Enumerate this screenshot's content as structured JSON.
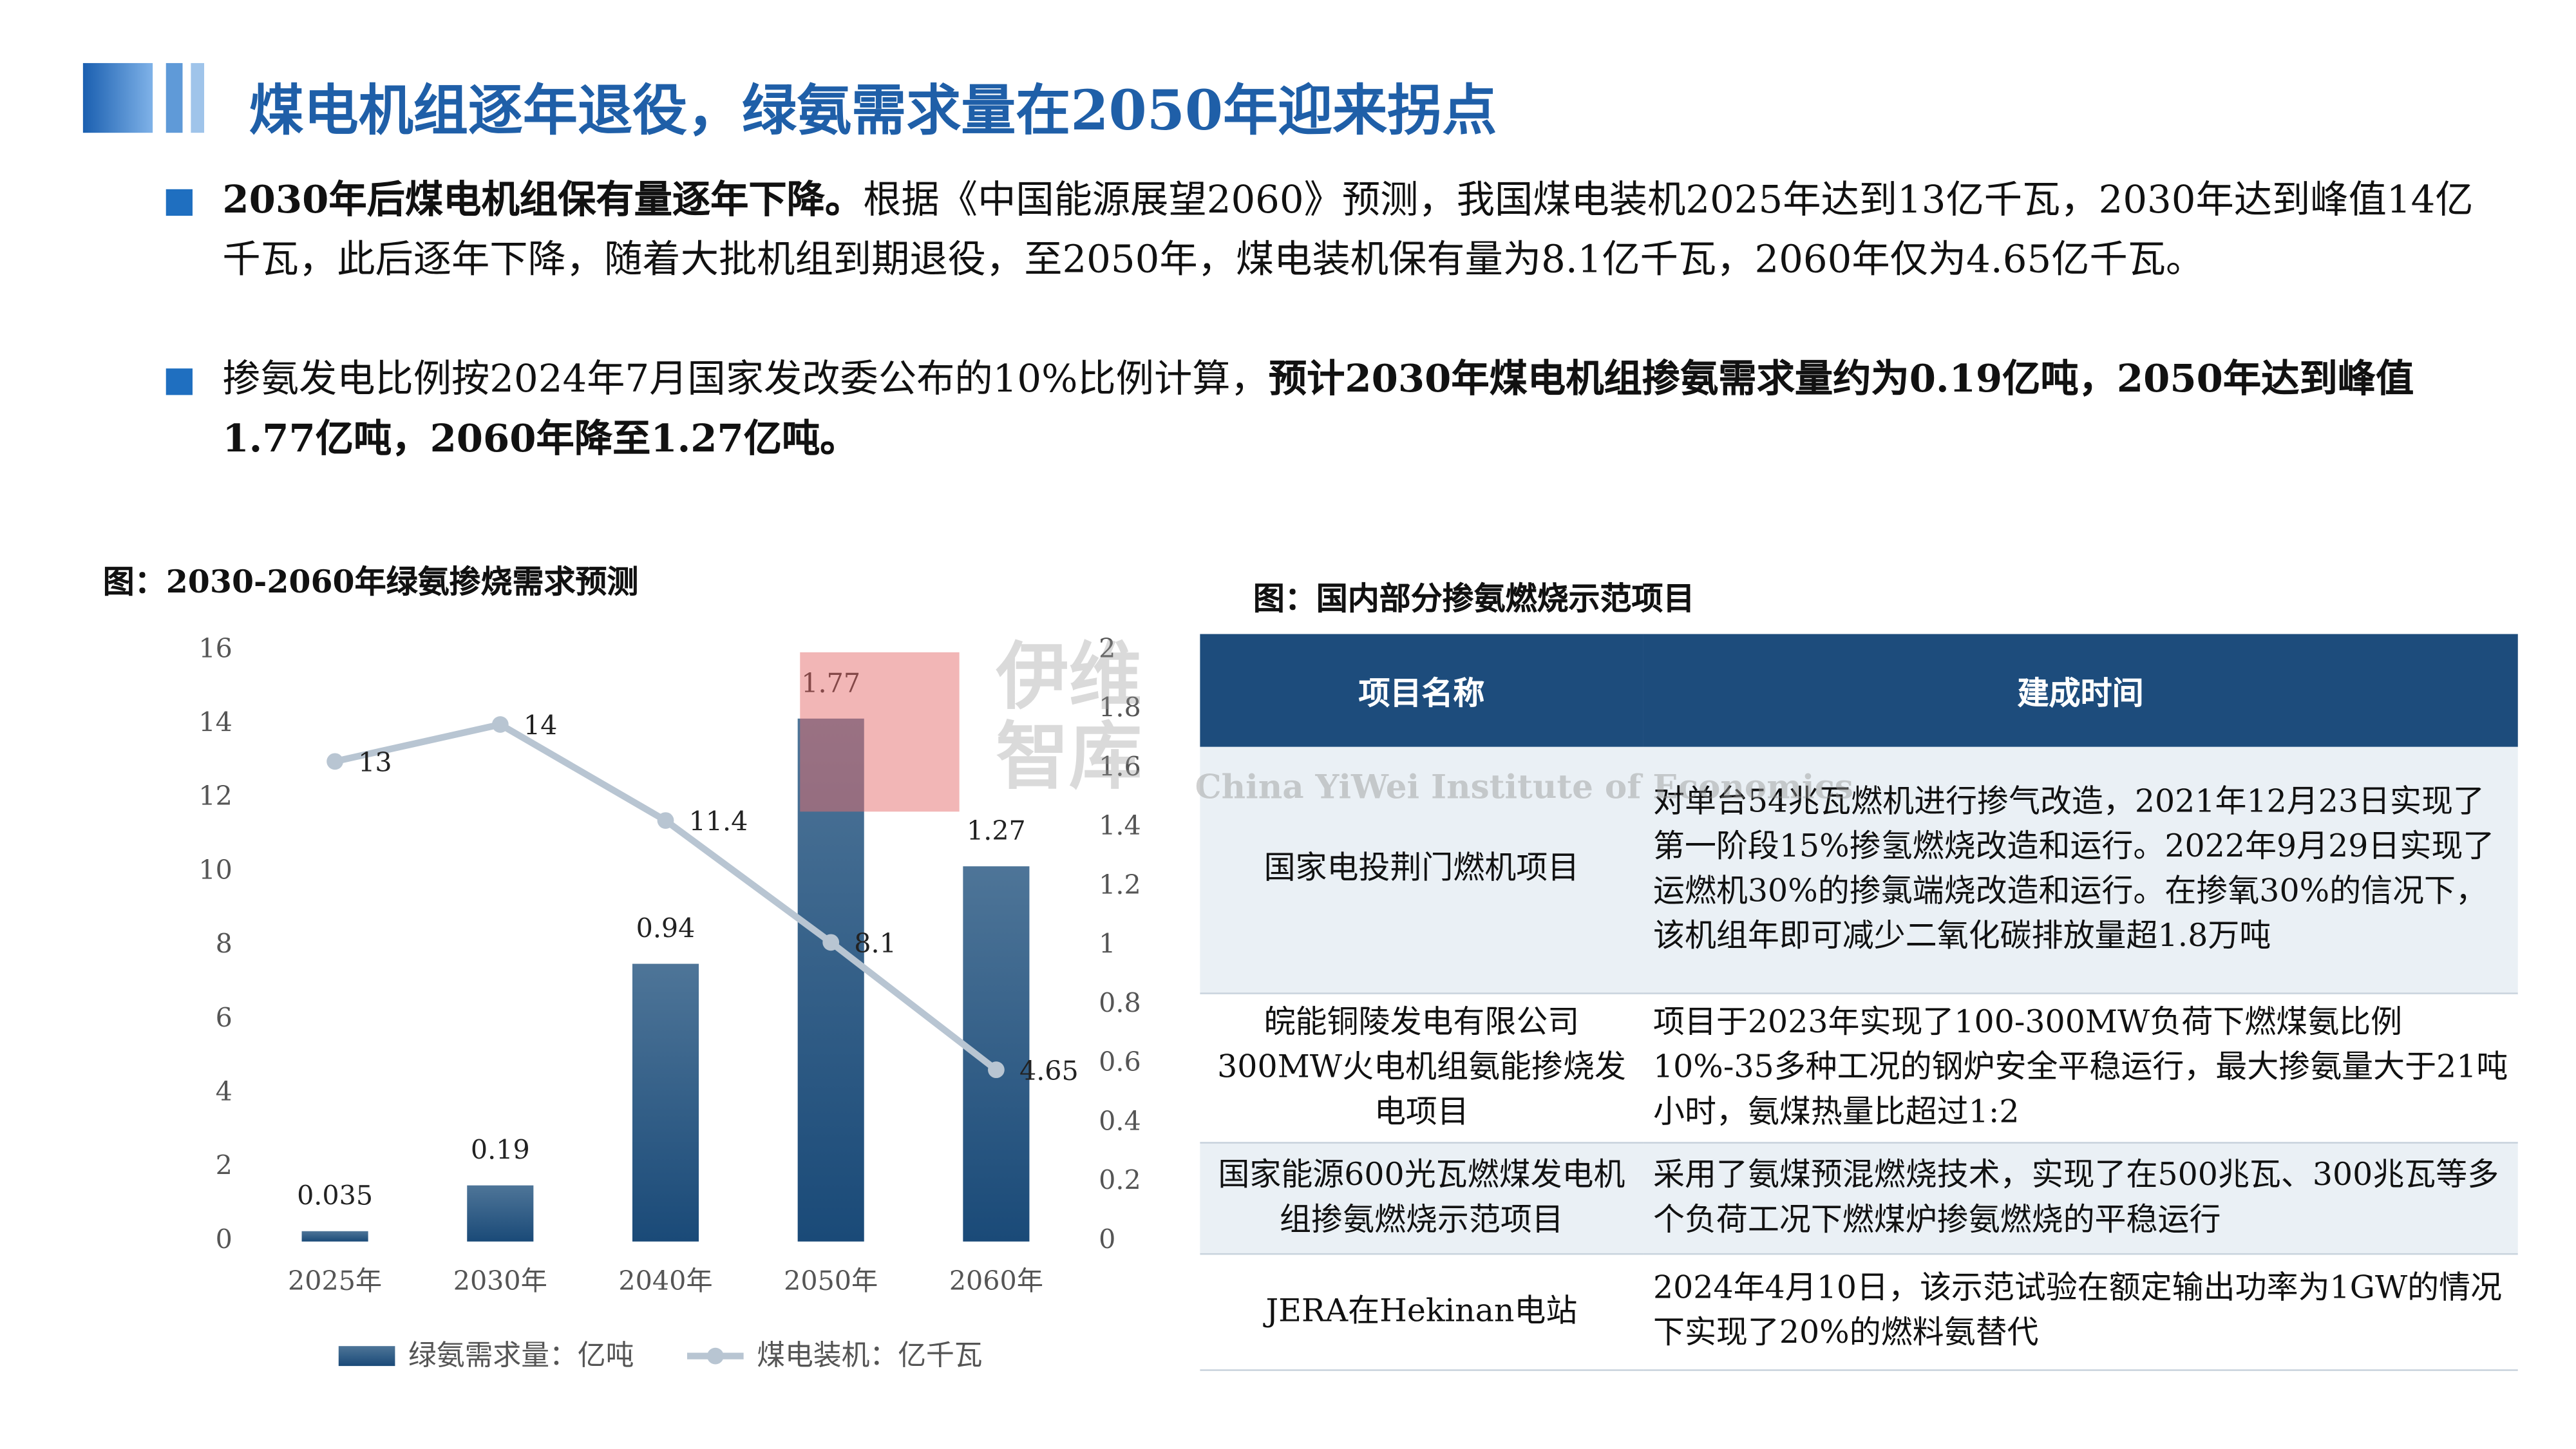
{
  "header": {
    "title": "煤电机组逐年退役，绿氨需求量在2050年迎来拐点"
  },
  "bullets": [
    {
      "segments": [
        {
          "text": "2030年后煤电机组保有量逐年下降。",
          "bold": true
        },
        {
          "text": "根据《中国能源展望2060》预测，我国煤电装机2025年达到13亿千瓦，2030年达到峰值14亿千瓦，此后逐年下降，随着大批机组到期退役，至2050年，煤电装机保有量为8.1亿千瓦，2060年仅为4.65亿千瓦。",
          "bold": false
        }
      ]
    },
    {
      "segments": [
        {
          "text": "掺氨发电比例按2024年7月国家发改委公布的10%比例计算，",
          "bold": false
        },
        {
          "text": "预计2030年煤电机组掺氨需求量约为0.19亿吨，2050年达到峰值1.77亿吨，2060年降至1.27亿吨。",
          "bold": true
        }
      ]
    }
  ],
  "chart_data": {
    "type": "bar_line",
    "title": "图：2030-2060年绿氨掺烧需求预测",
    "categories": [
      "2025年",
      "2030年",
      "2040年",
      "2050年",
      "2060年"
    ],
    "series": [
      {
        "name": "绿氨需求量：亿吨",
        "type": "bar",
        "axis": "y2",
        "color": "#2c5a84",
        "values": [
          0.035,
          0.19,
          0.94,
          1.77,
          1.27
        ]
      },
      {
        "name": "煤电装机：亿千瓦",
        "type": "line",
        "axis": "y",
        "color": "#b8c5d2",
        "values": [
          13,
          14,
          11.4,
          8.1,
          4.65
        ]
      }
    ],
    "ylim": [
      0,
      16
    ],
    "yticks": [
      0,
      2,
      4,
      6,
      8,
      10,
      12,
      14,
      16
    ],
    "y2lim": [
      0,
      2
    ],
    "y2ticks": [
      0,
      0.2,
      0.4,
      0.6,
      0.8,
      1,
      1.2,
      1.4,
      1.6,
      1.8,
      2
    ],
    "grid": false,
    "legend": "bottom"
  },
  "table": {
    "title": "图：国内部分掺氨燃烧示范项目",
    "header": [
      "项目名称",
      "建成时间"
    ],
    "rows": [
      [
        "国家电投荆门燃机项目",
        "对单台54兆瓦燃机进行掺气改造，2021年12月23日实现了第一阶段15%掺氢燃烧改造和运行。2022年9月29日实现了运燃机30%的掺氯端烧改造和运行。在掺氧30%的信况下，该机组年即可减少二氧化碳排放量超1.8万吨"
      ],
      [
        "皖能铜陵发电有限公司300MW火电机组氨能掺烧发电项目",
        "项目于2023年实现了100-300MW负荷下燃煤氨比例10%-35多种工况的钢炉安全平稳运行，最大掺氨量大于21吨小时，氨煤热量比超过1:2"
      ],
      [
        "国家能源600光瓦燃煤发电机组掺氨燃烧示范项目",
        "采用了氨煤预混燃烧技术，实现了在500兆瓦、300兆瓦等多个负荷工况下燃煤炉掺氨燃烧的平稳运行"
      ],
      [
        "JERA在Hekinan电站",
        "2024年4月10日，该示范试验在额定输出功率为1GW的情况下实现了20%的燃料氨替代"
      ]
    ]
  },
  "watermark": {
    "name": "伊维智库",
    "english": "China YiWei Institute of Economics"
  }
}
